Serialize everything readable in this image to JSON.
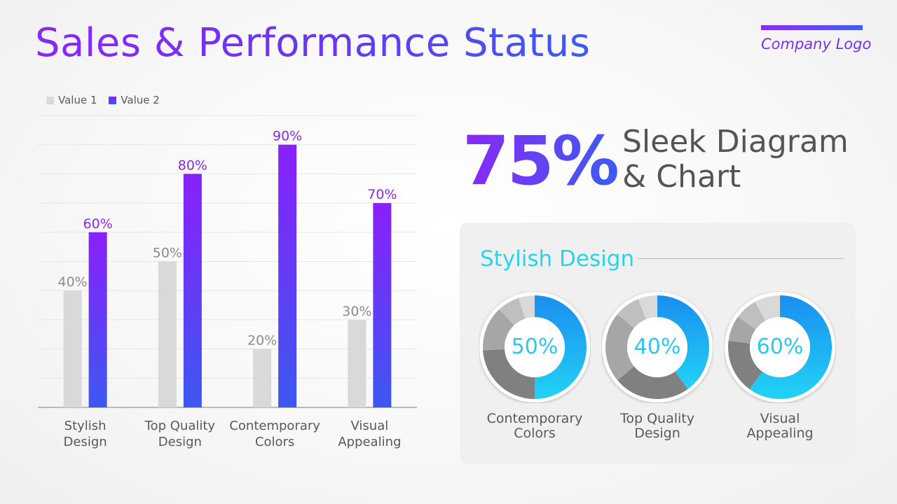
{
  "title": "Sales & Performance Status",
  "logo": {
    "text": "Company Logo"
  },
  "headline": {
    "percent": "75%",
    "line1": "Sleek Diagram",
    "line2": "& Chart"
  },
  "panel": {
    "title": "Stylish Design"
  },
  "colors": {
    "value1": "#d9d9d9",
    "value2_top": "#8a20fb",
    "value2_bottom": "#3c58f0",
    "title_gradient_start": "#8a28f5",
    "title_gradient_end": "#3c5cf0",
    "donut_blue_top": "#1a8ef0",
    "donut_blue_bottom": "#22d2f6",
    "panel_title": "#29d3ec"
  },
  "chart_data": [
    {
      "type": "bar",
      "categories": [
        [
          "Stylish",
          "Design"
        ],
        [
          "Top Quality",
          "Design"
        ],
        [
          "Contemporary",
          "Colors"
        ],
        [
          "Visual",
          "Appealing"
        ]
      ],
      "series": [
        {
          "name": "Value 1",
          "values": [
            40,
            50,
            20,
            30
          ],
          "labels": [
            "40%",
            "50%",
            "20%",
            "30%"
          ]
        },
        {
          "name": "Value 2",
          "values": [
            60,
            80,
            90,
            70
          ],
          "labels": [
            "60%",
            "80%",
            "90%",
            "70%"
          ]
        }
      ],
      "ylim": [
        0,
        100
      ],
      "grid": true,
      "legend": "top-left"
    },
    {
      "type": "pie",
      "donuts": [
        {
          "percent": 50,
          "label": "50%",
          "category": [
            "Contemporary",
            "Colors"
          ],
          "rest": [
            24,
            14,
            7,
            5
          ]
        },
        {
          "percent": 40,
          "label": "40%",
          "category": [
            "Top Quality",
            "Design"
          ],
          "rest": [
            24,
            22,
            8,
            6
          ]
        },
        {
          "percent": 60,
          "label": "60%",
          "category": [
            "Visual",
            "Appealing"
          ],
          "rest": [
            17,
            8,
            7,
            8
          ]
        }
      ]
    }
  ]
}
